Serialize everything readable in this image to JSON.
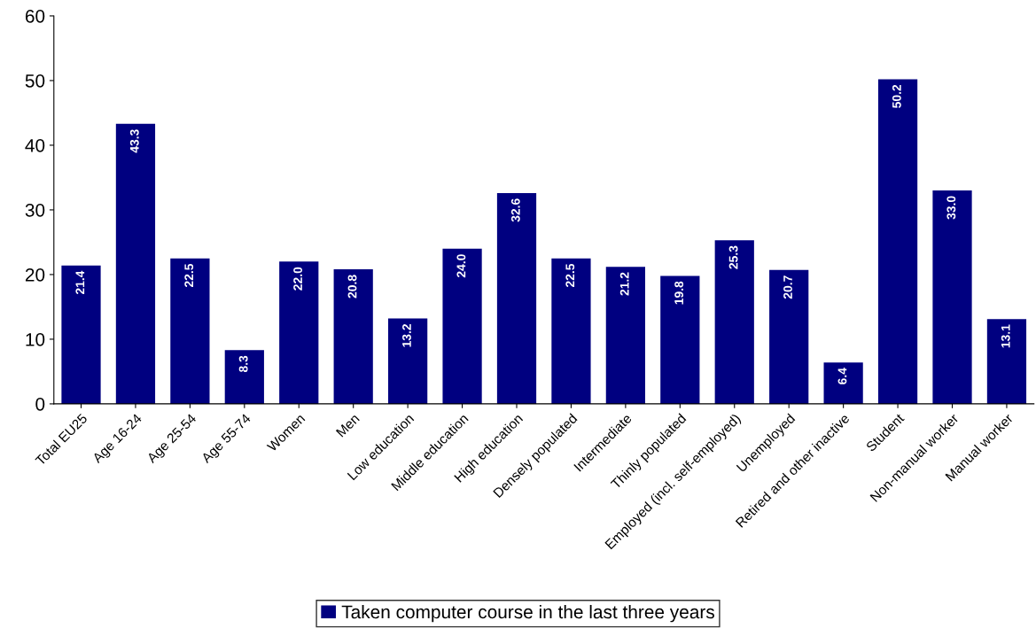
{
  "chart_data": {
    "type": "bar",
    "categories": [
      "Total EU25",
      "Age 16-24",
      "Age 25-54",
      "Age 55-74",
      "Women",
      "Men",
      "Low education",
      "Middle education",
      "High education",
      "Densely populated",
      "Intermediate",
      "Thinly populated",
      "Employed (incl. self-employed)",
      "Unemployed",
      "Retired and other inactive",
      "Student",
      "Non-manual worker",
      "Manual worker"
    ],
    "series": [
      {
        "name": "Taken computer course in the last three years",
        "color": "#000080",
        "values": [
          21.4,
          43.3,
          22.5,
          8.3,
          22.0,
          20.8,
          13.2,
          24.0,
          32.6,
          22.5,
          21.2,
          19.8,
          25.3,
          20.7,
          6.4,
          50.2,
          33.0,
          13.1
        ]
      }
    ],
    "value_labels": [
      "21.4",
      "43.3",
      "22.5",
      "8.3",
      "22.0",
      "20.8",
      "13.2",
      "24.0",
      "32.6",
      "22.5",
      "21.2",
      "19.8",
      "25.3",
      "20.7",
      "6.4",
      "50.2",
      "33.0",
      "13.1"
    ],
    "ylim": [
      0,
      60
    ],
    "yticks": [
      0,
      10,
      20,
      30,
      40,
      50,
      60
    ],
    "grid": false,
    "legend": "bottom"
  }
}
